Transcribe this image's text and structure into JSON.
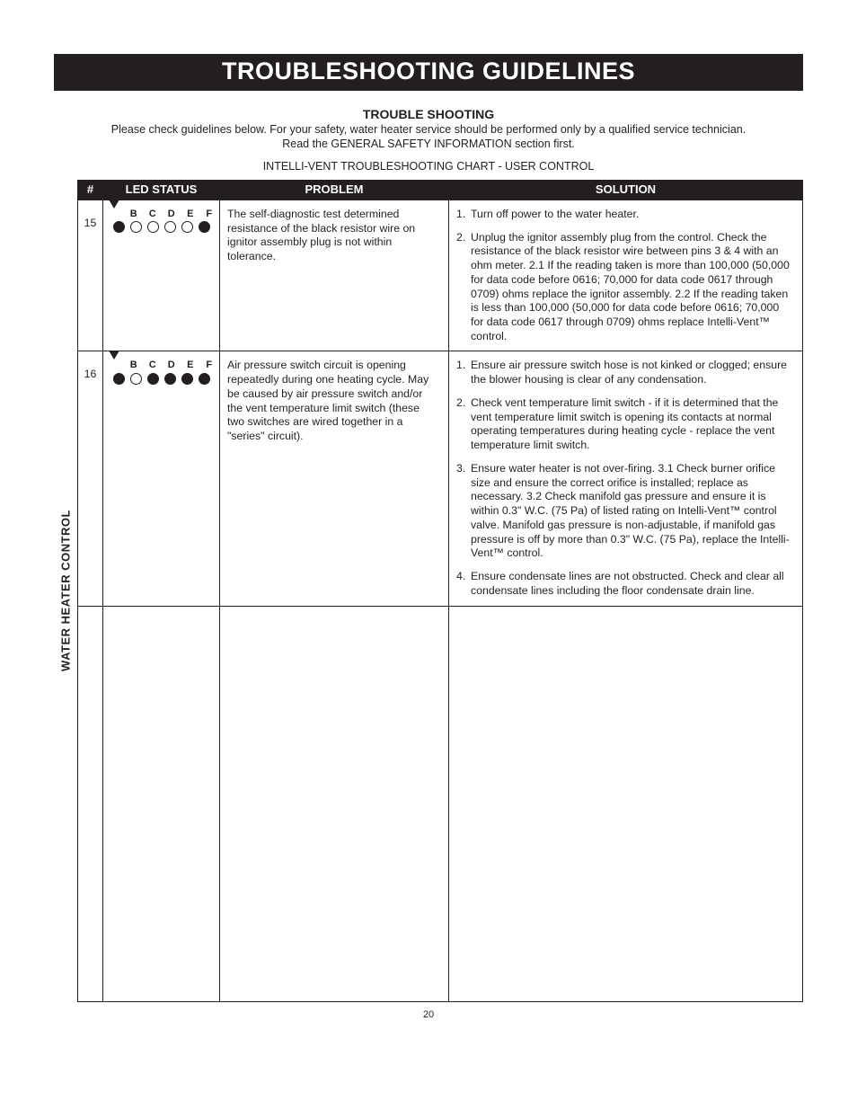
{
  "banner": "TROUBLESHOOTING GUIDELINES",
  "subheading": "TROUBLE SHOOTING",
  "intro_line1": "Please check guidelines below.  For your safety, water heater service should be performed only by a qualified service technician.",
  "intro_line2": "Read the GENERAL SAFETY INFORMATION section first.",
  "chart_caption": "INTELLI-VENT TROUBLESHOOTING CHART - USER CONTROL",
  "side_label": "WATER HEATER CONTROL",
  "columns": {
    "num": "#",
    "led": "LED STATUS",
    "problem": "PROBLEM",
    "solution": "SOLUTION"
  },
  "led_letters": [
    "B",
    "C",
    "D",
    "E",
    "F"
  ],
  "rows": [
    {
      "num": "15",
      "led_pattern": [
        true,
        false,
        false,
        false,
        false,
        true
      ],
      "problem": "The self-diagnostic test determined resistance of the black resistor wire on ignitor assembly plug is not within tolerance.",
      "solutions": [
        {
          "n": "1.",
          "t": "Turn off power to the water heater."
        },
        {
          "n": "2.",
          "t": "Unplug the ignitor assembly plug from the control. Check the resistance of the black resistor wire between pins 3 & 4 with an ohm meter. 2.1 If the reading taken is more than 100,000 (50,000 for data code before 0616; 70,000 for data code 0617 through 0709) ohms replace the ignitor assembly. 2.2 If the reading taken is less than 100,000 (50,000 for data code before 0616; 70,000 for data code 0617 through 0709) ohms replace Intelli-Vent™ control."
        }
      ]
    },
    {
      "num": "16",
      "led_pattern": [
        true,
        false,
        true,
        true,
        true,
        true
      ],
      "problem": "Air pressure switch circuit is opening repeatedly during one heating cycle. May be caused by air pressure switch and/or the vent temperature limit switch (these two switches are wired together in a \"series\" circuit).",
      "solutions": [
        {
          "n": "1.",
          "t": "Ensure air pressure switch hose is not kinked or clogged; ensure the blower housing is clear of any condensation."
        },
        {
          "n": "2.",
          "t": "Check vent temperature limit switch - if it is determined that the vent temperature limit switch is opening its contacts at normal operating temperatures during heating cycle - replace the vent temperature limit switch."
        },
        {
          "n": "3.",
          "t": "Ensure water heater is not over-firing. 3.1 Check burner orifice size and ensure the correct orifice is installed; replace as necessary. 3.2 Check manifold gas pressure and ensure it is within 0.3\" W.C. (75 Pa) of listed rating on Intelli-Vent™ control valve. Manifold gas pressure is non-adjustable, if manifold gas pressure is off by more than 0.3\" W.C. (75 Pa), replace the Intelli-Vent™ control."
        },
        {
          "n": "4.",
          "t": "Ensure condensate lines are not obstructed. Check and clear all condensate lines including the floor condensate drain line."
        }
      ]
    }
  ],
  "page_number": "20"
}
